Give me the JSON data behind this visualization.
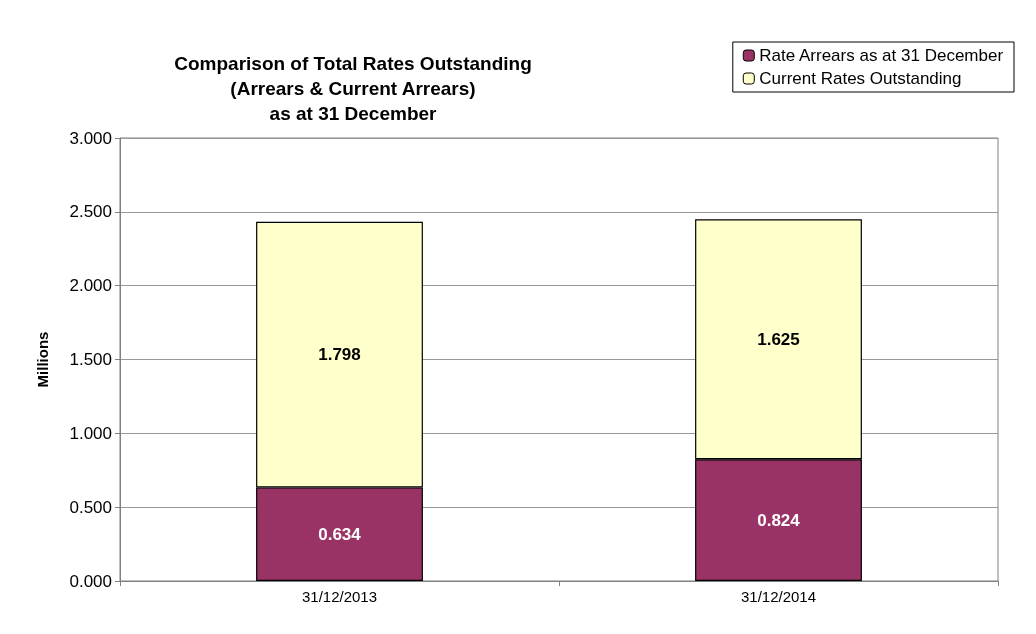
{
  "chart_data": {
    "type": "bar",
    "title": "Comparison of Total Rates Outstanding\n(Arrears & Current Arrears)\nas at 31 December",
    "ylabel": "Millions",
    "categories": [
      "31/12/2013",
      "31/12/2014"
    ],
    "stacked": true,
    "series": [
      {
        "name": "Rate Arrears as at 31 December",
        "color": "#993366",
        "values": [
          0.634,
          0.824
        ]
      },
      {
        "name": "Current Rates Outstanding",
        "color": "#ffffcc",
        "values": [
          1.798,
          1.625
        ]
      }
    ],
    "ylim": [
      0,
      3
    ],
    "yticks": [
      {
        "value": 0,
        "label": "0.000"
      },
      {
        "value": 0.5,
        "label": "0.500"
      },
      {
        "value": 1,
        "label": "1.000"
      },
      {
        "value": 1.5,
        "label": "1.500"
      },
      {
        "value": 2,
        "label": "2.000"
      },
      {
        "value": 2.5,
        "label": "2.500"
      },
      {
        "value": 3,
        "label": "3.000"
      }
    ],
    "grid": "y",
    "legend": "top right",
    "data_labels": true
  }
}
